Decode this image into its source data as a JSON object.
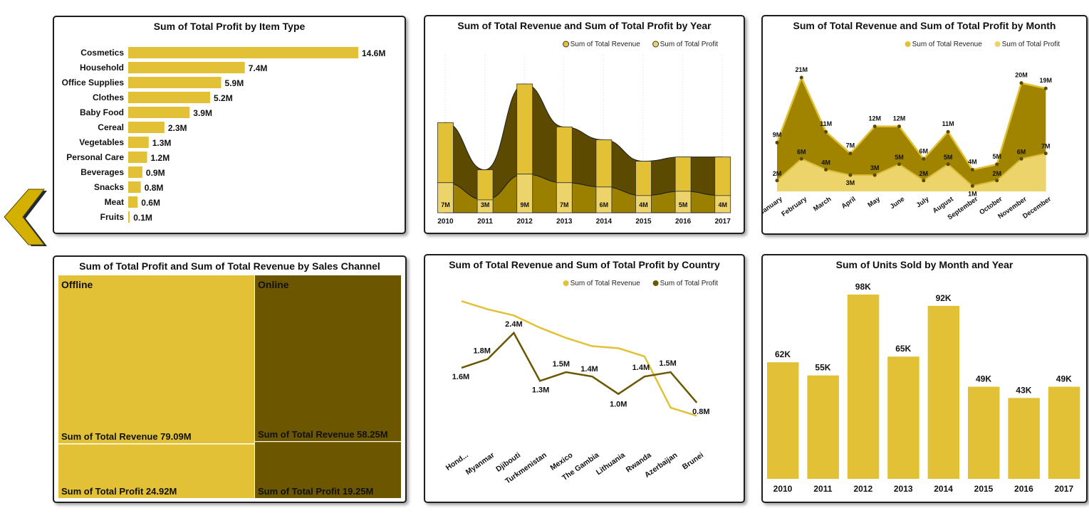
{
  "colors": {
    "gold": "#e2c136",
    "gold_light": "#ecd46a",
    "olive": "#6c5600",
    "olive_dark": "#5c4a00",
    "border": "#1e1e1e"
  },
  "nav": {
    "back_icon": "chevron-left-icon"
  },
  "charts": {
    "profit_by_item": {
      "title": "Sum of Total Profit by Item Type",
      "chart_data": {
        "type": "bar",
        "orientation": "horizontal",
        "categories": [
          "Cosmetics",
          "Household",
          "Office Supplies",
          "Clothes",
          "Baby Food",
          "Cereal",
          "Vegetables",
          "Personal Care",
          "Beverages",
          "Snacks",
          "Meat",
          "Fruits"
        ],
        "values": [
          14.6,
          7.4,
          5.9,
          5.2,
          3.9,
          2.3,
          1.3,
          1.2,
          0.9,
          0.8,
          0.6,
          0.1
        ],
        "labels": [
          "14.6M",
          "7.4M",
          "5.9M",
          "5.2M",
          "3.9M",
          "2.3M",
          "1.3M",
          "1.2M",
          "0.9M",
          "0.8M",
          "0.6M",
          "0.1M"
        ]
      }
    },
    "by_year": {
      "title": "Sum of Total Revenue and Sum of Total Profit by Year",
      "legend": [
        "Sum of Total Revenue",
        "Sum of Total Profit"
      ],
      "chart_data": {
        "type": "bar",
        "stacked": true,
        "categories": [
          "2010",
          "2011",
          "2012",
          "2013",
          "2014",
          "2015",
          "2016",
          "2017"
        ],
        "series": [
          {
            "name": "Sum of Total Revenue",
            "values": [
              21,
              10,
              30,
              20,
              17,
              12,
              13,
              13
            ]
          },
          {
            "name": "Sum of Total Profit",
            "values": [
              7,
              3,
              9,
              7,
              6,
              4,
              5,
              4
            ]
          }
        ],
        "profit_labels": [
          "7M",
          "3M",
          "9M",
          "7M",
          "6M",
          "4M",
          "5M",
          "4M"
        ],
        "legend_position": "top-right"
      }
    },
    "by_month": {
      "title": "Sum of Total Revenue and Sum of Total Profit by Month",
      "legend": [
        "Sum of Total Revenue",
        "Sum of Total Profit"
      ],
      "chart_data": {
        "type": "area",
        "categories": [
          "January",
          "February",
          "March",
          "April",
          "May",
          "June",
          "July",
          "August",
          "September",
          "October",
          "November",
          "December"
        ],
        "series": [
          {
            "name": "Sum of Total Revenue",
            "values": [
              9,
              21,
              11,
              7,
              12,
              12,
              6,
              11,
              4,
              5,
              20,
              19
            ],
            "labels": [
              "9M",
              "21M",
              "11M",
              "7M",
              "12M",
              "12M",
              "6M",
              "11M",
              "4M",
              "5M",
              "20M",
              "19M"
            ]
          },
          {
            "name": "Sum of Total Profit",
            "values": [
              2,
              6,
              4,
              3,
              3,
              5,
              2,
              5,
              1,
              2,
              6,
              7
            ],
            "labels": [
              "2M",
              "6M",
              "4M",
              "3M",
              "3M",
              "5M",
              "2M",
              "5M",
              "1M",
              "2M",
              "6M",
              "7M"
            ]
          }
        ],
        "legend_position": "top-right"
      }
    },
    "by_channel": {
      "title": "Sum of Total Profit and Sum of Total Revenue by Sales Channel",
      "chart_data": {
        "type": "treemap",
        "groups": [
          {
            "name": "Offline",
            "revenue": 79.09,
            "profit": 24.92,
            "revenue_label": "Sum of Total Revenue 79.09M",
            "profit_label": "Sum of Total Profit 24.92M"
          },
          {
            "name": "Online",
            "revenue": 58.25,
            "profit": 19.25,
            "revenue_label": "Sum of Total Revenue 58.25M",
            "profit_label": "Sum of Total Profit 19.25M"
          }
        ]
      }
    },
    "by_country": {
      "title": "Sum of Total Revenue and Sum of Total Profit by Country",
      "legend": [
        "Sum of Total Revenue",
        "Sum of Total Profit"
      ],
      "chart_data": {
        "type": "line",
        "categories": [
          "Hond...",
          "Myanmar",
          "Djibouti",
          "Turkmenistan",
          "Mexico",
          "The Gambia",
          "Lithuania",
          "Rwanda",
          "Azerbaijan",
          "Brunei"
        ],
        "series": [
          {
            "name": "Sum of Total Revenue",
            "values": [
              6.8,
              6.4,
              6.1,
              5.5,
              5.0,
              4.6,
              4.5,
              4.1,
              1.6,
              1.2
            ]
          },
          {
            "name": "Sum of Total Profit",
            "values": [
              1.6,
              1.8,
              2.4,
              1.3,
              1.5,
              1.4,
              1.0,
              1.4,
              1.5,
              0.8
            ],
            "labels": [
              "1.6M",
              "1.8M",
              "2.4M",
              "1.3M",
              "1.5M",
              "1.4M",
              "1.0M",
              "1.4M",
              "1.5M",
              "0.8M"
            ]
          }
        ],
        "legend_position": "top-right"
      }
    },
    "units_by_year": {
      "title": "Sum of Units Sold by Month and Year",
      "chart_data": {
        "type": "bar",
        "categories": [
          "2010",
          "2011",
          "2012",
          "2013",
          "2014",
          "2015",
          "2016",
          "2017"
        ],
        "values": [
          62,
          55,
          98,
          65,
          92,
          49,
          43,
          49
        ],
        "labels": [
          "62K",
          "55K",
          "98K",
          "65K",
          "92K",
          "49K",
          "43K",
          "49K"
        ]
      }
    }
  }
}
